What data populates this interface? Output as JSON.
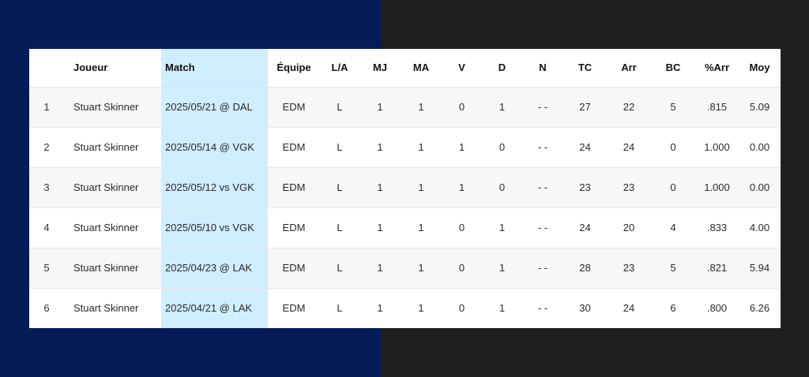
{
  "table": {
    "headers": {
      "rank": "",
      "player": "Joueur",
      "match": "Match",
      "team": "Équipe",
      "la": "L/A",
      "mj": "MJ",
      "ma": "MA",
      "v": "V",
      "d": "D",
      "n": "N",
      "tc": "TC",
      "arr": "Arr",
      "bc": "BC",
      "pct": "%Arr",
      "moy": "Moy"
    },
    "rows": [
      {
        "rank": "1",
        "player": "Stuart Skinner",
        "match": "2025/05/21 @ DAL",
        "team": "EDM",
        "la": "L",
        "mj": "1",
        "ma": "1",
        "v": "0",
        "d": "1",
        "n": "- -",
        "tc": "27",
        "arr": "22",
        "bc": "5",
        "pct": ".815",
        "moy": "5.09"
      },
      {
        "rank": "2",
        "player": "Stuart Skinner",
        "match": "2025/05/14 @ VGK",
        "team": "EDM",
        "la": "L",
        "mj": "1",
        "ma": "1",
        "v": "1",
        "d": "0",
        "n": "- -",
        "tc": "24",
        "arr": "24",
        "bc": "0",
        "pct": "1.000",
        "moy": "0.00"
      },
      {
        "rank": "3",
        "player": "Stuart Skinner",
        "match": "2025/05/12 vs VGK",
        "team": "EDM",
        "la": "L",
        "mj": "1",
        "ma": "1",
        "v": "1",
        "d": "0",
        "n": "- -",
        "tc": "23",
        "arr": "23",
        "bc": "0",
        "pct": "1.000",
        "moy": "0.00"
      },
      {
        "rank": "4",
        "player": "Stuart Skinner",
        "match": "2025/05/10 vs VGK",
        "team": "EDM",
        "la": "L",
        "mj": "1",
        "ma": "1",
        "v": "0",
        "d": "1",
        "n": "- -",
        "tc": "24",
        "arr": "20",
        "bc": "4",
        "pct": ".833",
        "moy": "4.00"
      },
      {
        "rank": "5",
        "player": "Stuart Skinner",
        "match": "2025/04/23 @ LAK",
        "team": "EDM",
        "la": "L",
        "mj": "1",
        "ma": "1",
        "v": "0",
        "d": "1",
        "n": "- -",
        "tc": "28",
        "arr": "23",
        "bc": "5",
        "pct": ".821",
        "moy": "5.94"
      },
      {
        "rank": "6",
        "player": "Stuart Skinner",
        "match": "2025/04/21 @ LAK",
        "team": "EDM",
        "la": "L",
        "mj": "1",
        "ma": "1",
        "v": "0",
        "d": "1",
        "n": "- -",
        "tc": "30",
        "arr": "24",
        "bc": "6",
        "pct": ".800",
        "moy": "6.26"
      }
    ]
  },
  "colors": {
    "background_left": "#061c58",
    "background_right": "#1f1f1f",
    "highlight_column": "#cfeeff"
  }
}
